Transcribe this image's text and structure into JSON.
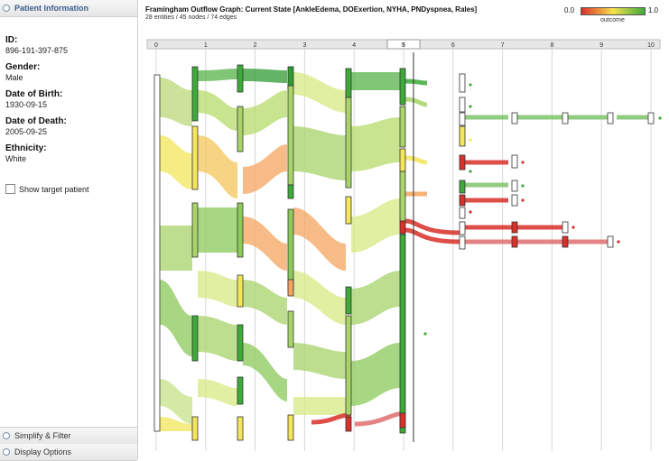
{
  "sidebar": {
    "patient_header": "Patient Information",
    "fields": [
      {
        "key": "ID:",
        "value": "896-191-397-875"
      },
      {
        "key": "Gender:",
        "value": "Male"
      },
      {
        "key": "Date of Birth:",
        "value": "1930-09-15"
      },
      {
        "key": "Date of Death:",
        "value": "2005-09-25"
      },
      {
        "key": "Ethnicity:",
        "value": "White"
      }
    ],
    "show_target_label": "Show target patient",
    "simplify_label": "Simplify & Filter",
    "display_label": "Display Options"
  },
  "graph": {
    "title": "Framingham Outflow Graph: Current State [AnkleEdema, DOExertion, NYHA, PNDyspnea, Rales]",
    "subtitle": "28 entities / 45 nodes / 74 edges",
    "legend_low": "0.0",
    "legend_high": "1.0",
    "legend_caption": "outcome",
    "steps": [
      "0",
      "1",
      "2",
      "3",
      "4",
      "5",
      "6",
      "7",
      "8",
      "9",
      "10"
    ],
    "current_step": "5"
  },
  "colors": {
    "green": "#3daa3a",
    "light_green": "#a8d46a",
    "yellow": "#f2e65a",
    "orange": "#f3a560",
    "red": "#d9302a"
  }
}
